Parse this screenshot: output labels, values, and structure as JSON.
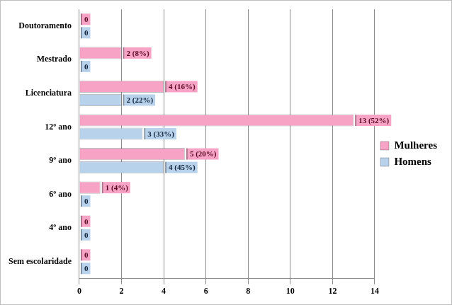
{
  "chart_data": {
    "type": "bar",
    "orientation": "horizontal",
    "categories": [
      "Doutoramento",
      "Mestrado",
      "Licenciatura",
      "12º ano",
      "9º ano",
      "6º ano",
      "4º ano",
      "Sem escolaridade"
    ],
    "series": [
      {
        "name": "Mulheres",
        "color": "#f6a3c6",
        "values": [
          0,
          2,
          4,
          13,
          5,
          1,
          0,
          0
        ],
        "value_labels": [
          "0",
          "2 (8%)",
          "4 (16%)",
          "13 (52%)",
          "5 (20%)",
          "1 (4%)",
          "0",
          "0"
        ]
      },
      {
        "name": "Homens",
        "color": "#b9d2ec",
        "values": [
          0,
          0,
          2,
          3,
          4,
          0,
          0,
          0
        ],
        "value_labels": [
          "0",
          "0",
          "2 (22%)",
          "3 (33%)",
          "4 (45%)",
          "0",
          "0",
          "0"
        ]
      }
    ],
    "xlim": [
      0,
      14
    ],
    "xticks": [
      0,
      2,
      4,
      6,
      8,
      10,
      12,
      14
    ],
    "grid": true,
    "legend": "right",
    "data_labels": true
  }
}
